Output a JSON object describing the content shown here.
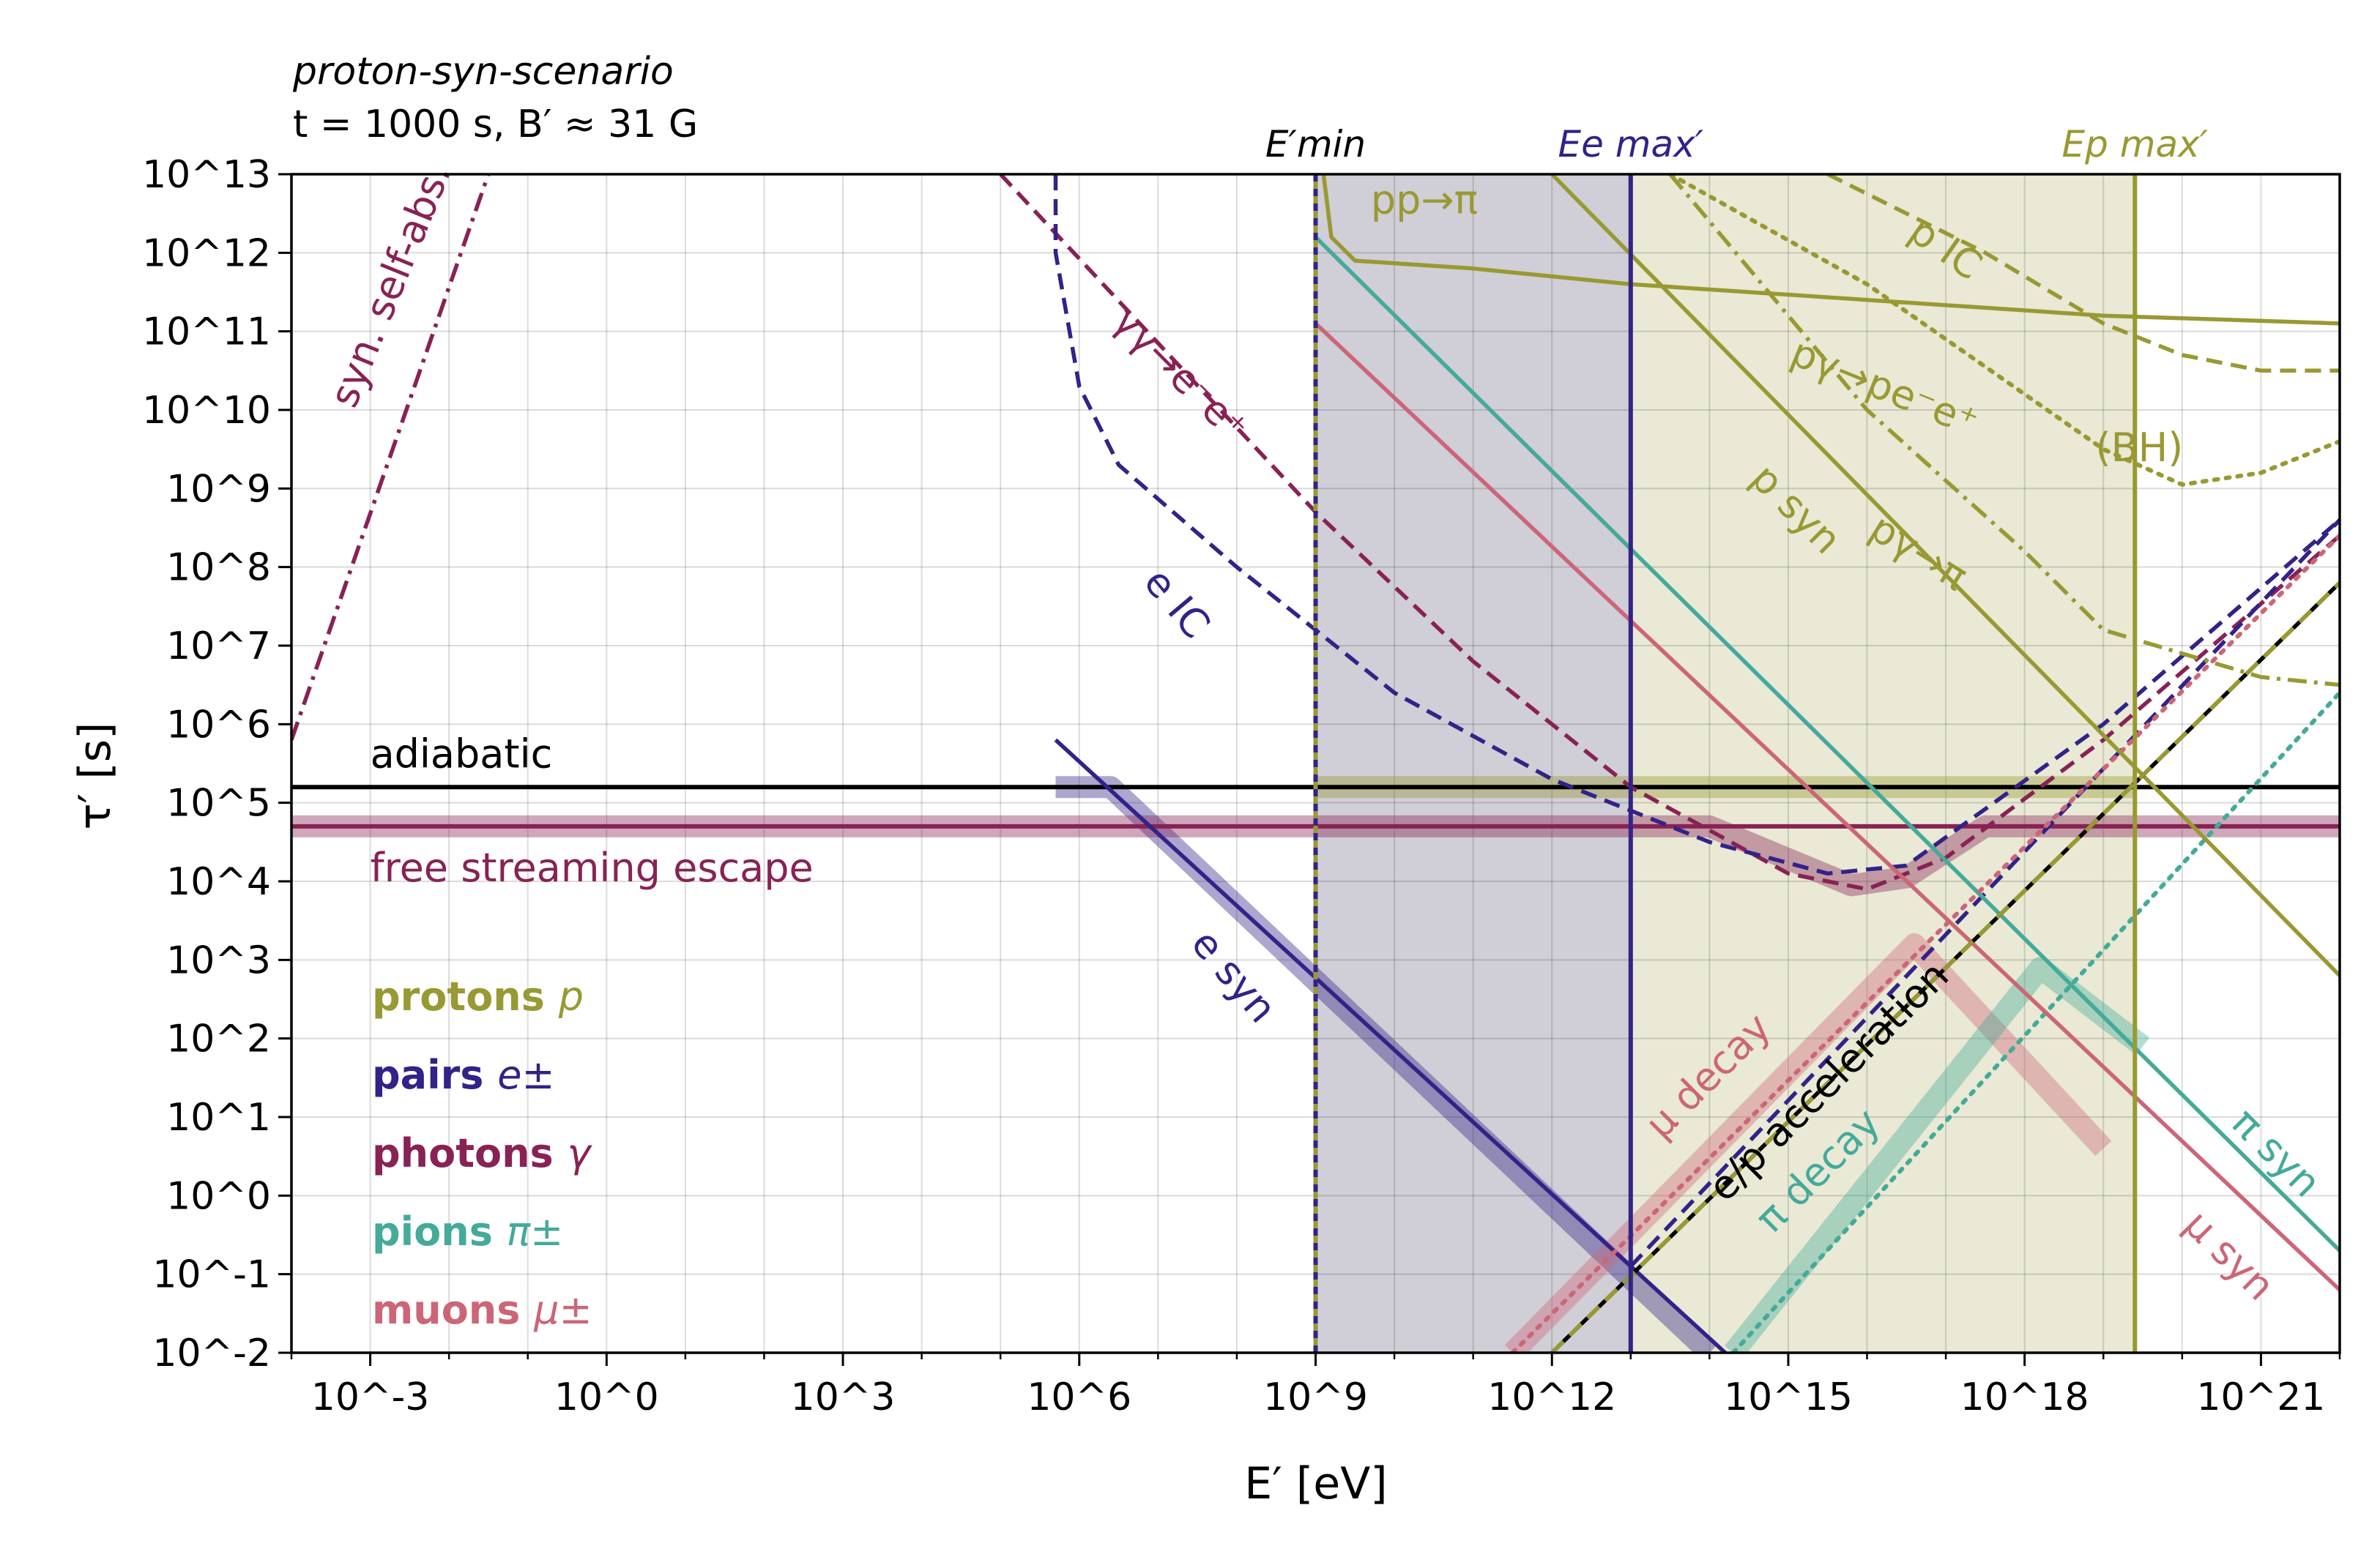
{
  "chart_data": {
    "type": "line",
    "title": "",
    "header_lines": [
      "proton-syn-scenario",
      "t = 1000 s, B′ ≈ 31 G"
    ],
    "xlabel": "E′ [eV]",
    "ylabel": "τ′ [s]",
    "x_log10_range": [
      -4,
      22
    ],
    "y_log10_range": [
      -2,
      13
    ],
    "x_tick_labels": [
      "10^-3",
      "10^0",
      "10^3",
      "10^6",
      "10^9",
      "10^12",
      "10^15",
      "10^18",
      "10^21"
    ],
    "y_tick_labels": [
      "10^-2",
      "10^-1",
      "10^0",
      "10^1",
      "10^2",
      "10^3",
      "10^4",
      "10^5",
      "10^6",
      "10^7",
      "10^8",
      "10^9",
      "10^10",
      "10^11",
      "10^12",
      "10^13"
    ],
    "grid": true,
    "colors": {
      "protons": "#999933",
      "pairs": "#332288",
      "photons": "#882255",
      "pions": "#44aa99",
      "muons": "#cc6677",
      "black": "#000000"
    },
    "vertical_markers": [
      {
        "label": "E′min",
        "log10_x": 9.0,
        "species": "protons"
      },
      {
        "label": "Ee max′",
        "log10_x": 13.0,
        "species": "pairs"
      },
      {
        "label": "Ep max′",
        "log10_x": 19.4,
        "species": "protons"
      }
    ],
    "shaded_ranges": [
      {
        "from_log10_x": 9.0,
        "to_log10_x": 13.0,
        "color": "#8a8599"
      },
      {
        "from_log10_x": 13.0,
        "to_log10_x": 19.4,
        "color": "#c9c996"
      }
    ],
    "horizontal_lines": [
      {
        "name": "adiabatic",
        "log10_y": 5.2,
        "species": "black"
      },
      {
        "name": "free streaming escape",
        "log10_y": 4.7,
        "species": "photons"
      }
    ],
    "legend": [
      {
        "bold": "protons",
        "symbol": "p",
        "species": "protons"
      },
      {
        "bold": "pairs",
        "symbol": "e±",
        "species": "pairs"
      },
      {
        "bold": "photons",
        "symbol": "γ",
        "species": "photons"
      },
      {
        "bold": "pions",
        "symbol": "π±",
        "species": "pions"
      },
      {
        "bold": "muons",
        "symbol": "μ±",
        "species": "muons"
      }
    ],
    "series": [
      {
        "name": "syn. self-abs.",
        "species": "photons",
        "dash": "dashdot",
        "log10_points": [
          [
            -4.0,
            5.8
          ],
          [
            -1.5,
            13.0
          ]
        ]
      },
      {
        "name": "γγ→e⁻e⁺",
        "species": "photons",
        "dash": "dashed",
        "log10_points": [
          [
            5.0,
            13.0
          ],
          [
            9.0,
            8.7
          ],
          [
            11.0,
            6.8
          ],
          [
            13.0,
            5.2
          ],
          [
            15.0,
            4.1
          ],
          [
            16.0,
            3.9
          ],
          [
            17.0,
            4.3
          ],
          [
            19.0,
            5.8
          ],
          [
            22.0,
            8.4
          ]
        ]
      },
      {
        "name": "e IC",
        "species": "pairs",
        "dash": "dashed",
        "log10_points": [
          [
            5.7,
            13.0
          ],
          [
            5.7,
            12.0
          ],
          [
            6.0,
            10.3
          ],
          [
            6.5,
            9.3
          ],
          [
            8.0,
            8.0
          ],
          [
            10.0,
            6.4
          ],
          [
            12.0,
            5.3
          ],
          [
            14.0,
            4.5
          ],
          [
            15.5,
            4.1
          ],
          [
            16.5,
            4.2
          ],
          [
            19.0,
            6.0
          ],
          [
            22.0,
            8.6
          ]
        ]
      },
      {
        "name": "e syn",
        "species": "pairs",
        "dash": "solid",
        "log10_points": [
          [
            5.7,
            5.8
          ],
          [
            14.2,
            -2.0
          ]
        ]
      },
      {
        "name": "e syn (dashed)",
        "species": "pairs",
        "dash": "dashed",
        "log10_points": [
          [
            13.0,
            -0.9
          ],
          [
            22.0,
            8.6
          ]
        ]
      },
      {
        "name": "π syn",
        "species": "pions",
        "dash": "solid",
        "log10_points": [
          [
            9.0,
            12.2
          ],
          [
            22.0,
            -0.7
          ]
        ]
      },
      {
        "name": "π decay",
        "species": "pions",
        "dash": "dotted",
        "log10_points": [
          [
            14.3,
            -2.0
          ],
          [
            22.0,
            6.4
          ]
        ]
      },
      {
        "name": "μ syn",
        "species": "muons",
        "dash": "solid",
        "log10_points": [
          [
            9.0,
            11.1
          ],
          [
            22.0,
            -1.2
          ]
        ]
      },
      {
        "name": "μ decay",
        "species": "muons",
        "dash": "dotted",
        "log10_points": [
          [
            11.5,
            -2.0
          ],
          [
            22.0,
            8.4
          ]
        ]
      },
      {
        "name": "pp→π",
        "species": "protons",
        "dash": "solid",
        "log10_points": [
          [
            9.1,
            13.0
          ],
          [
            9.2,
            12.2
          ],
          [
            9.5,
            11.9
          ],
          [
            11.0,
            11.8
          ],
          [
            13.0,
            11.6
          ],
          [
            16.0,
            11.4
          ],
          [
            19.0,
            11.2
          ],
          [
            22.0,
            11.1
          ]
        ]
      },
      {
        "name": "p syn",
        "species": "protons",
        "dash": "solid",
        "log10_points": [
          [
            12.0,
            13.0
          ],
          [
            22.0,
            2.8
          ]
        ]
      },
      {
        "name": "pγ→π",
        "species": "protons",
        "dash": "dashdot",
        "log10_points": [
          [
            13.5,
            13.0
          ],
          [
            16.0,
            10.0
          ],
          [
            18.0,
            8.2
          ],
          [
            19.0,
            7.2
          ],
          [
            20.0,
            6.9
          ],
          [
            21.0,
            6.6
          ],
          [
            22.0,
            6.5
          ]
        ]
      },
      {
        "name": "pγ→pe⁻e⁺(BH)",
        "species": "protons",
        "dash": "dotted",
        "log10_points": [
          [
            13.5,
            13.0
          ],
          [
            16.0,
            11.6
          ],
          [
            18.0,
            10.2
          ],
          [
            19.0,
            9.5
          ],
          [
            20.0,
            9.05
          ],
          [
            21.0,
            9.2
          ],
          [
            22.0,
            9.6
          ]
        ]
      },
      {
        "name": "p IC",
        "species": "protons",
        "dash": "dashed",
        "log10_points": [
          [
            15.5,
            13.0
          ],
          [
            17.5,
            12.0
          ],
          [
            19.0,
            11.1
          ],
          [
            20.0,
            10.7
          ],
          [
            21.0,
            10.5
          ],
          [
            22.0,
            10.5
          ]
        ]
      },
      {
        "name": "e/p acceleration",
        "species": "black",
        "dash": "solid",
        "log10_points": [
          [
            12.0,
            -2.0
          ],
          [
            22.0,
            7.8
          ]
        ]
      },
      {
        "name": "e/p acceleration (protons)",
        "species": "protons",
        "dash": "dashed",
        "log10_points": [
          [
            12.0,
            -2.0
          ],
          [
            22.0,
            7.8
          ]
        ]
      }
    ],
    "highlight_bands": [
      {
        "species": "pairs",
        "log10_points": [
          [
            5.7,
            5.2
          ],
          [
            6.4,
            5.2
          ],
          [
            14.0,
            -2.0
          ]
        ]
      },
      {
        "species": "photons",
        "log10_points": [
          [
            -4.0,
            4.7
          ],
          [
            14.0,
            4.7
          ],
          [
            15.8,
            3.95
          ],
          [
            16.5,
            4.05
          ],
          [
            17.5,
            4.7
          ],
          [
            22.0,
            4.7
          ]
        ]
      },
      {
        "species": "muons",
        "log10_points": [
          [
            11.5,
            -2.0
          ],
          [
            16.6,
            3.2
          ],
          [
            19.0,
            0.6
          ]
        ]
      },
      {
        "species": "pions",
        "log10_points": [
          [
            14.3,
            -2.0
          ],
          [
            18.2,
            2.9
          ],
          [
            19.5,
            1.9
          ]
        ]
      },
      {
        "species": "protons",
        "log10_points": [
          [
            9.0,
            5.2
          ],
          [
            19.4,
            5.2
          ]
        ]
      }
    ],
    "annotations": [
      {
        "text": "syn. self-abs.",
        "species": "photons",
        "log10_x": -3.2,
        "log10_y": 10.0,
        "rotate": -68
      },
      {
        "text": "γγ→e⁻e⁺",
        "species": "photons",
        "log10_x": 6.4,
        "log10_y": 11.1,
        "rotate": 45
      },
      {
        "text": "e IC",
        "species": "pairs",
        "log10_x": 6.8,
        "log10_y": 7.8,
        "rotate": 50
      },
      {
        "text": "e syn",
        "species": "pairs",
        "log10_x": 7.4,
        "log10_y": 3.2,
        "rotate": 50
      },
      {
        "text": "pp→π",
        "species": "protons",
        "log10_x": 9.7,
        "log10_y": 12.5,
        "rotate": 0
      },
      {
        "text": "p IC",
        "species": "protons",
        "log10_x": 16.5,
        "log10_y": 12.2,
        "rotate": 35
      },
      {
        "text": "pγ→pe⁻e⁺",
        "species": "protons",
        "log10_x": 15.0,
        "log10_y": 10.6,
        "rotate": 22
      },
      {
        "text": "(BH)",
        "species": "protons",
        "log10_x": 18.9,
        "log10_y": 9.35,
        "rotate": 0
      },
      {
        "text": "p syn",
        "species": "protons",
        "log10_x": 14.5,
        "log10_y": 9.1,
        "rotate": 45
      },
      {
        "text": "pγ→π",
        "species": "protons",
        "log10_x": 16.0,
        "log10_y": 8.4,
        "rotate": 32
      },
      {
        "text": "μ decay",
        "species": "muons",
        "log10_x": 13.4,
        "log10_y": 0.7,
        "rotate": -45
      },
      {
        "text": "e/p acceleration",
        "species": "black",
        "log10_x": 14.2,
        "log10_y": -0.1,
        "rotate": -45
      },
      {
        "text": "π decay",
        "species": "pions",
        "log10_x": 14.8,
        "log10_y": -0.5,
        "rotate": -45
      },
      {
        "text": "π syn",
        "species": "pions",
        "log10_x": 20.6,
        "log10_y": 0.9,
        "rotate": 45
      },
      {
        "text": "μ syn",
        "species": "muons",
        "log10_x": 20.0,
        "log10_y": -0.4,
        "rotate": 45
      },
      {
        "text": "adiabatic",
        "species": "black",
        "log10_x": -3.0,
        "log10_y": 5.45,
        "rotate": 0
      },
      {
        "text": "free streaming escape",
        "species": "photons",
        "log10_x": -3.0,
        "log10_y": 4.0,
        "rotate": 0
      }
    ]
  }
}
